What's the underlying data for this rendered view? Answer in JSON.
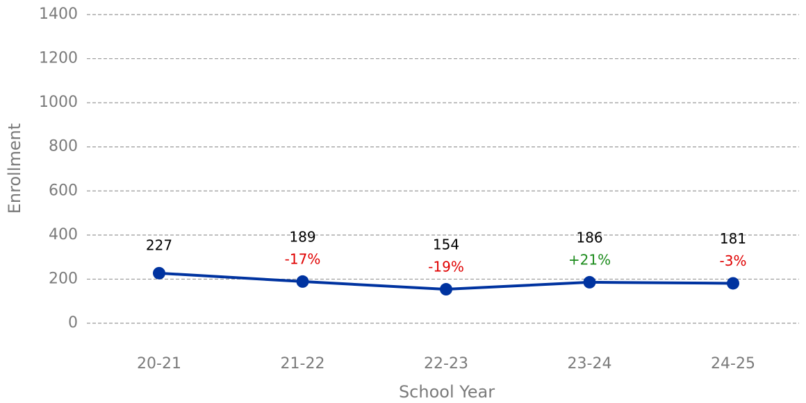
{
  "chart_data": {
    "type": "line",
    "x_label": "School Year",
    "y_label": "Enrollment",
    "categories": [
      "20-21",
      "21-22",
      "22-23",
      "23-24",
      "24-25"
    ],
    "series": [
      {
        "name": "Enrollment",
        "color": "#0033a0",
        "values": [
          227,
          189,
          154,
          186,
          181
        ]
      }
    ],
    "change_labels": [
      null,
      "-17%",
      "-19%",
      "+21%",
      "-3%"
    ],
    "change_colors": [
      null,
      "#e00000",
      "#e00000",
      "#1a8a1a",
      "#e00000"
    ],
    "ylim": [
      0,
      1400
    ],
    "yticks": [
      0,
      200,
      400,
      600,
      800,
      1000,
      1200,
      1400
    ],
    "grid": true
  }
}
